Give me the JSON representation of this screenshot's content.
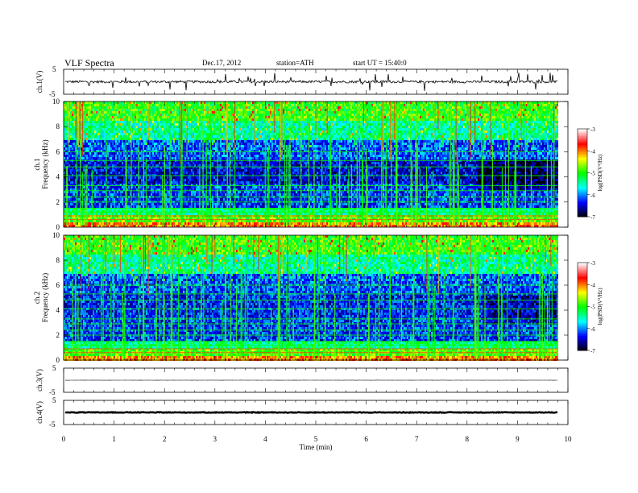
{
  "header": {
    "title": "VLF  Spectra",
    "date": "Dec.17, 2012",
    "station": "station=ATH",
    "start": "start  UT =    15:40:0"
  },
  "colors": {
    "scale": [
      "#000000",
      "#0000ff",
      "#00ffff",
      "#00ff00",
      "#ffff00",
      "#ff0000",
      "#ffffff"
    ]
  },
  "chart_data": [
    {
      "type": "line",
      "panel": "ch1-waveform",
      "ylabel": "ch.1(V)",
      "ylim": [
        -5,
        5
      ],
      "ytick_labels": [
        "5",
        "-5"
      ],
      "xlim": [
        0,
        10
      ],
      "baseline": 0,
      "note": "noisy waveform with spikes"
    },
    {
      "type": "heatmap",
      "panel": "ch1-spectrogram",
      "ylabel_lines": [
        "ch.1",
        "Frequency (kHz)"
      ],
      "ylim": [
        0,
        10
      ],
      "ytick_labels": [
        "0",
        "2",
        "4",
        "6",
        "8",
        "10"
      ],
      "xlim": [
        0,
        10
      ],
      "data_end_min": 9.8,
      "colorbar": {
        "label": "log(PSD(V²/Hz)",
        "range": [
          -7,
          -3
        ],
        "tick_labels": [
          "-3",
          "-4",
          "-5",
          "-6",
          "-7"
        ]
      }
    },
    {
      "type": "heatmap",
      "panel": "ch2-spectrogram",
      "ylabel_lines": [
        "ch.2",
        "Frequency (kHz)"
      ],
      "ylim": [
        0,
        10
      ],
      "ytick_labels": [
        "0",
        "2",
        "4",
        "6",
        "8",
        "10"
      ],
      "xlim": [
        0,
        10
      ],
      "data_end_min": 9.8,
      "colorbar": {
        "label": "log(PSD(V²/Hz)",
        "range": [
          -7,
          -3
        ],
        "tick_labels": [
          "-3",
          "-4",
          "-5",
          "-6",
          "-7"
        ]
      }
    },
    {
      "type": "line",
      "panel": "ch3-waveform",
      "ylabel": "ch.3(V)",
      "ylim": [
        -5,
        5
      ],
      "ytick_labels": [
        "5",
        "-5"
      ],
      "xlim": [
        0,
        10
      ],
      "baseline": 0
    },
    {
      "type": "line",
      "panel": "ch4-waveform",
      "ylabel": "ch.4(V)",
      "ylim": [
        -5,
        5
      ],
      "ytick_labels": [
        "5",
        "-5"
      ],
      "xlim": [
        0,
        10
      ],
      "baseline": 0,
      "xlabel": "Time  (min)",
      "xtick_labels": [
        "0",
        "1",
        "2",
        "3",
        "4",
        "5",
        "6",
        "7",
        "8",
        "9",
        "10"
      ]
    }
  ]
}
